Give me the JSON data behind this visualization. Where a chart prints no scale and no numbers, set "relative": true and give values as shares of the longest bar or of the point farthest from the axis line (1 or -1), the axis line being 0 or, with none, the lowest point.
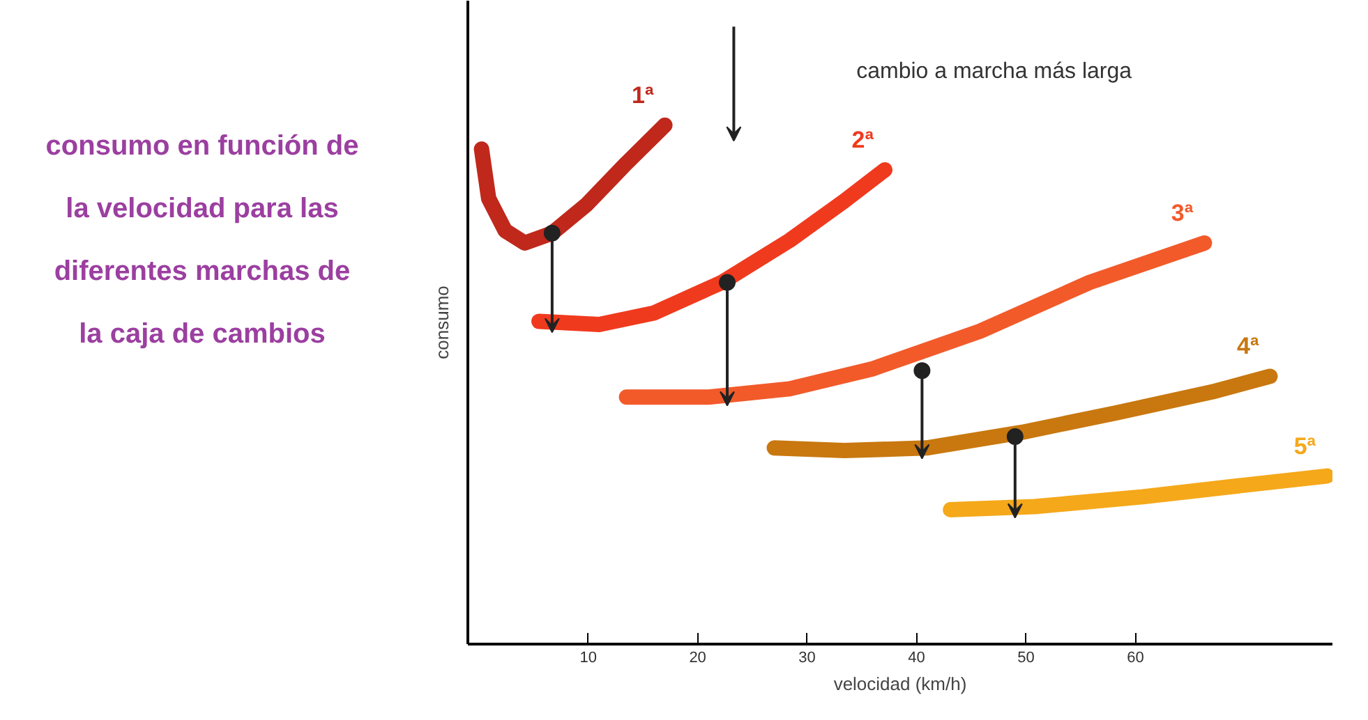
{
  "chart_data": {
    "type": "line",
    "title": "consumo en función de la velocidad para las diferentes marchas de la caja de cambios",
    "xlabel": "velocidad (km/h)",
    "ylabel": "consumo",
    "relative": true,
    "xlim": [
      -1,
      78
    ],
    "xticks": [
      10,
      20,
      30,
      40,
      50,
      60
    ],
    "grid": false,
    "line_style": "solid",
    "series": [
      {
        "name": "1ª",
        "color": "#c0281c",
        "x": [
          0.25,
          0.9,
          2.4,
          4.2,
          6.7,
          9.8,
          13.5,
          17.0
        ],
        "values": [
          0.954,
          0.859,
          0.797,
          0.773,
          0.792,
          0.846,
          0.927,
          1.0
        ]
      },
      {
        "name": "2ª",
        "color": "#f03a1e",
        "x": [
          5.5,
          11,
          16,
          22.2,
          28.4,
          33.4,
          37.1
        ],
        "values": [
          0.622,
          0.616,
          0.638,
          0.697,
          0.778,
          0.854,
          0.914
        ]
      },
      {
        "name": "3ª",
        "color": "#f25a2a",
        "x": [
          13.5,
          21,
          28.4,
          35.9,
          45.8,
          55.8,
          66.3
        ],
        "values": [
          0.476,
          0.476,
          0.492,
          0.53,
          0.603,
          0.697,
          0.773
        ]
      },
      {
        "name": "4ª",
        "color": "#c8780f",
        "x": [
          27,
          33.4,
          40.9,
          49.6,
          58.3,
          67,
          72.3
        ],
        "values": [
          0.378,
          0.373,
          0.378,
          0.408,
          0.446,
          0.486,
          0.516
        ]
      },
      {
        "name": "5ª",
        "color": "#f5a81a",
        "x": [
          43.1,
          50.8,
          60.7,
          69.4,
          77.5
        ],
        "values": [
          0.259,
          0.265,
          0.284,
          0.305,
          0.324
        ]
      },
      {
        "type": "scatter",
        "color": "#222222",
        "marker": "circle",
        "x": [
          6.7,
          22.7,
          40.5,
          49.0
        ],
        "values": [
          0.792,
          0.697,
          0.527,
          0.4
        ]
      }
    ],
    "annotations": [
      "cambio a marcha más larga"
    ]
  }
}
